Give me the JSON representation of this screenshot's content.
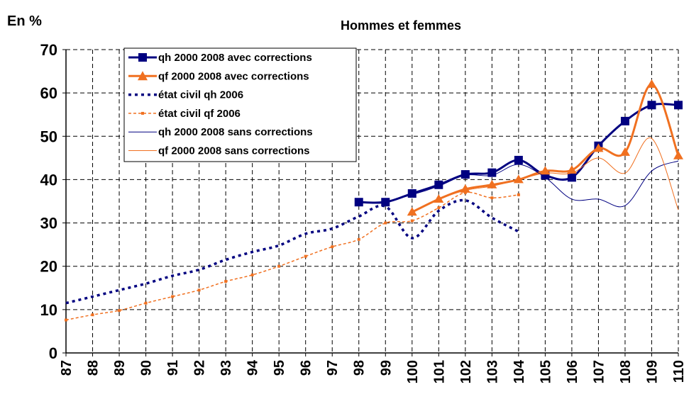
{
  "chart_data": {
    "type": "line",
    "title": "Hommes et femmes",
    "y_label": "En %",
    "categories": [
      "87",
      "88",
      "89",
      "90",
      "91",
      "92",
      "93",
      "94",
      "95",
      "96",
      "97",
      "98",
      "99",
      "100",
      "101",
      "102",
      "103",
      "104",
      "105",
      "106",
      "107",
      "108",
      "109",
      "110"
    ],
    "ylim": [
      0,
      70
    ],
    "yticks": [
      0,
      10,
      20,
      30,
      40,
      50,
      60,
      70
    ],
    "grid": true,
    "legend": "upper-left",
    "series": [
      {
        "name": "qh 2000 2008 avec corrections",
        "color": "#000080",
        "marker": "square",
        "dash": false,
        "width": 3,
        "values": [
          null,
          null,
          null,
          null,
          null,
          null,
          null,
          null,
          null,
          null,
          null,
          34.8,
          34.8,
          36.8,
          38.8,
          41.2,
          41.6,
          44.5,
          41.0,
          40.5,
          47.8,
          53.5,
          57.2,
          57.2
        ]
      },
      {
        "name": "qf 2000 2008 avec corrections",
        "color": "#f07020",
        "marker": "triangle",
        "dash": false,
        "width": 3,
        "values": [
          null,
          null,
          null,
          null,
          null,
          null,
          null,
          null,
          null,
          null,
          null,
          null,
          null,
          32.5,
          35.5,
          37.8,
          38.8,
          40.0,
          42.0,
          42.2,
          47.2,
          46.3,
          62.0,
          45.5
        ]
      },
      {
        "name": "état civil qh 2006",
        "color": "#000080",
        "marker": "none",
        "dash": true,
        "width": 3.5,
        "values": [
          11.5,
          13.0,
          14.5,
          16.0,
          17.8,
          19.2,
          21.5,
          23.3,
          24.8,
          27.5,
          28.7,
          31.5,
          33.8,
          26.5,
          32.8,
          35.2,
          31.2,
          28.0,
          null,
          null,
          null,
          null,
          null,
          null
        ]
      },
      {
        "name": "état civil qf 2006",
        "color": "#f07020",
        "marker": "dot",
        "dash": true,
        "width": 1.5,
        "values": [
          7.6,
          8.8,
          9.8,
          11.5,
          13.0,
          14.5,
          16.5,
          18.0,
          20.0,
          22.3,
          24.5,
          26.2,
          30.0,
          30.5,
          33.5,
          37.0,
          35.8,
          36.5,
          null,
          null,
          null,
          null,
          null,
          null
        ]
      },
      {
        "name": "qh 2000 2008 sans corrections",
        "color": "#000080",
        "marker": "none",
        "dash": false,
        "width": 1,
        "values": [
          null,
          null,
          null,
          null,
          null,
          null,
          null,
          null,
          null,
          null,
          null,
          34.8,
          35.0,
          36.5,
          38.5,
          41.0,
          41.0,
          43.5,
          40.5,
          35.5,
          35.5,
          34.0,
          42.0,
          44.3
        ]
      },
      {
        "name": "qf 2000 2008 sans corrections",
        "color": "#f07020",
        "marker": "none",
        "dash": false,
        "width": 1,
        "values": [
          null,
          null,
          null,
          null,
          null,
          null,
          null,
          null,
          null,
          null,
          null,
          null,
          null,
          32.5,
          35.5,
          37.5,
          38.5,
          40.0,
          41.5,
          41.5,
          45.0,
          41.5,
          49.5,
          33.0
        ]
      }
    ]
  }
}
